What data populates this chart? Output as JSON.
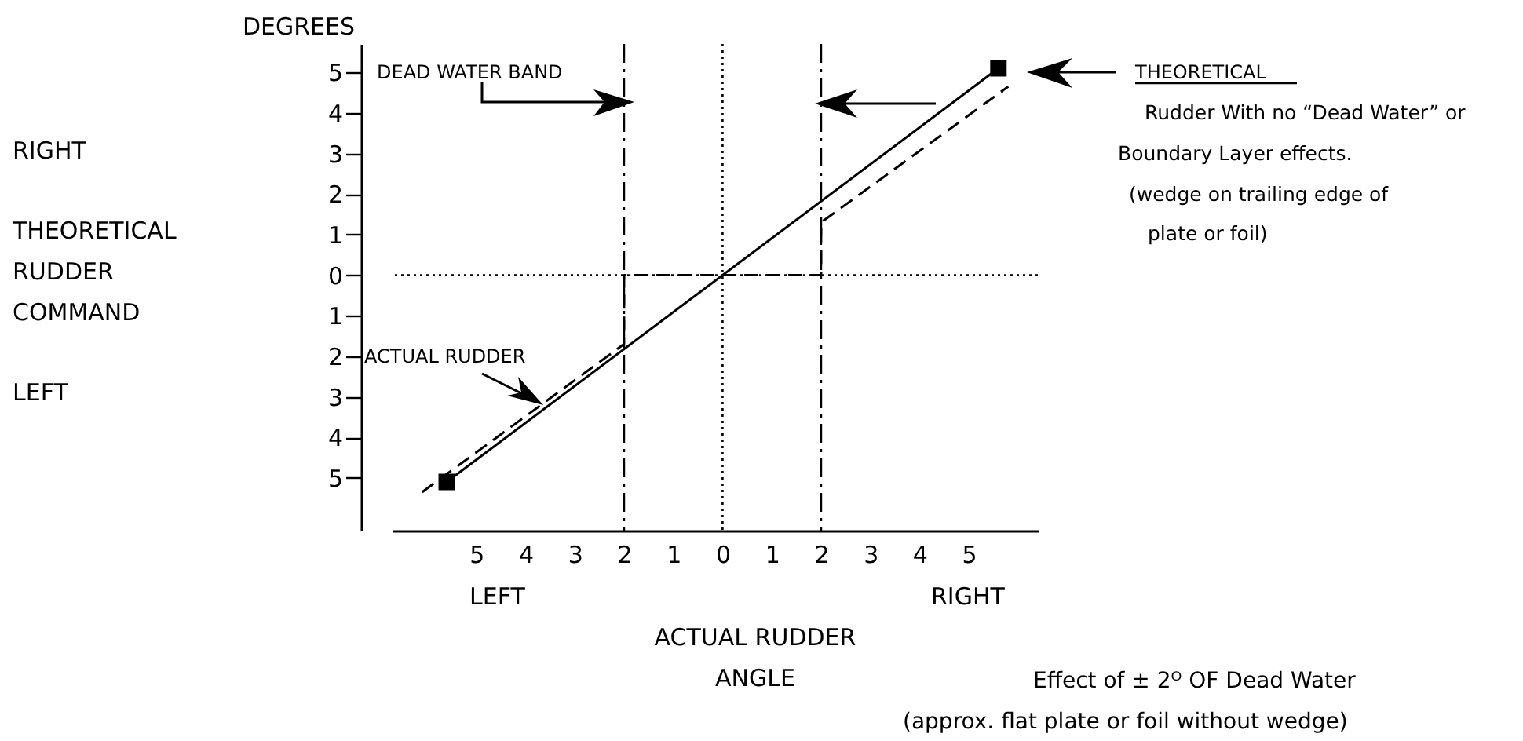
{
  "chart_data": {
    "type": "line",
    "xlabel": "ACTUAL RUDDER\nANGLE",
    "xlim": [
      -6.7,
      6.4
    ],
    "ylim": [
      -6.3,
      5.7
    ],
    "xticks": [
      {
        "value": -5,
        "label": "5"
      },
      {
        "value": -4,
        "label": "4"
      },
      {
        "value": -3,
        "label": "3"
      },
      {
        "value": -2,
        "label": "2"
      },
      {
        "value": -1,
        "label": "1"
      },
      0,
      {
        "value": 1,
        "label": "1"
      },
      {
        "value": 2,
        "label": "2"
      },
      {
        "value": 3,
        "label": "3"
      },
      {
        "value": 4,
        "label": "4"
      },
      {
        "value": 5,
        "label": "5"
      }
    ],
    "yticks": [
      {
        "value": -5,
        "label": "5"
      },
      {
        "value": -4,
        "label": "4"
      },
      {
        "value": -3,
        "label": "3"
      },
      {
        "value": -2,
        "label": "2"
      },
      {
        "value": -1,
        "label": "1"
      },
      0,
      {
        "value": 1,
        "label": "1"
      },
      {
        "value": 2,
        "label": "2"
      },
      {
        "value": 3,
        "label": "3"
      },
      {
        "value": 4,
        "label": "4"
      },
      {
        "value": 5,
        "label": "5"
      }
    ],
    "grid": false,
    "series": [
      {
        "color": "#000000",
        "marker": "square",
        "line_style": "solid",
        "x": [
          -5.6,
          5.6
        ],
        "values": [
          -5.1,
          5.1
        ]
      },
      {
        "color": "#000000",
        "line_style": "dashed",
        "x": [
          -6.1,
          -2,
          -2,
          2,
          2,
          5.8
        ],
        "values": [
          -5.35,
          -1.7,
          0,
          0,
          1.3,
          4.65
        ]
      }
    ],
    "ref_lines": [
      {
        "axis": "x",
        "value": -2,
        "color": "#000000",
        "line_style": "dashdot"
      },
      {
        "axis": "x",
        "value": 2,
        "color": "#000000",
        "line_style": "dashdot"
      },
      {
        "axis": "x",
        "value": 0,
        "color": "#000000",
        "line_style": "dotted"
      },
      {
        "axis": "y",
        "value": 0,
        "color": "#000000",
        "line_style": "dotted"
      }
    ],
    "annotations": [
      "DEGREES",
      "RIGHT",
      "THEORETICAL",
      "RUDDER",
      "COMMAND",
      "LEFT",
      "DEAD WATER BAND",
      "ACTUAL RUDDER",
      "THEORETICAL",
      "Rudder With no “Dead Water” or",
      "Boundary Layer effects.",
      "(wedge on trailing edge of",
      "plate or foil)",
      "LEFT",
      "RIGHT",
      "Effect of ± 2ᴼ OF Dead Water",
      "(approx. flat plate or foil without wedge)"
    ]
  }
}
